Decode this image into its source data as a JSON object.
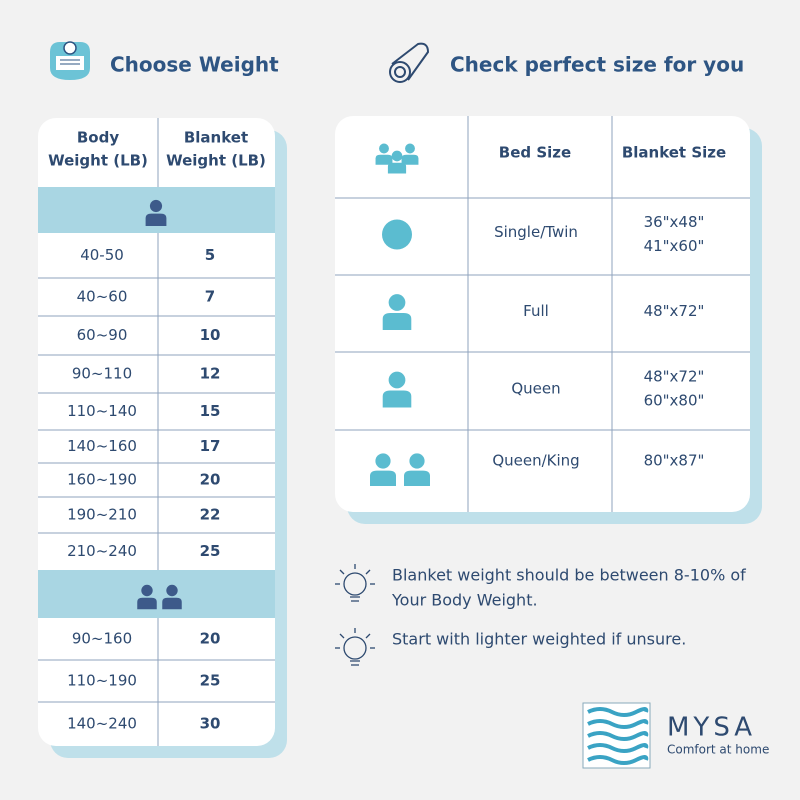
{
  "headings": {
    "weight": "Choose Weight",
    "size": "Check perfect size for you"
  },
  "weight_table": {
    "headers": [
      [
        "Body",
        "Weight (LB)"
      ],
      [
        "Blanket",
        "Weight (LB)"
      ]
    ],
    "single": [
      [
        "40-50",
        5
      ],
      [
        "40~60",
        7
      ],
      [
        "60~90",
        10
      ],
      [
        "90~110",
        12
      ],
      [
        "110~140",
        15
      ],
      [
        "140~160",
        17
      ],
      [
        "160~190",
        20
      ],
      [
        "190~210",
        22
      ],
      [
        "210~240",
        25
      ]
    ],
    "couple": [
      [
        "90~160",
        20
      ],
      [
        "110~190",
        25
      ],
      [
        "140~240",
        30
      ]
    ]
  },
  "size_table": {
    "headers": [
      "Bed Size",
      "Blanket Size"
    ],
    "rows": [
      {
        "bed": "Single/Twin",
        "sizes": [
          "36\"x48\"",
          "41\"x60\""
        ]
      },
      {
        "bed": "Full",
        "sizes": [
          "48\"x72\""
        ]
      },
      {
        "bed": "Queen",
        "sizes": [
          "48\"x72\"",
          "60\"x80\""
        ]
      },
      {
        "bed": "Queen/King",
        "sizes": [
          "80\"x87\""
        ]
      }
    ]
  },
  "tips": [
    [
      "Blanket weight should be between 8-10% of",
      "Your Body Weight."
    ],
    [
      "Start with lighter weighted if unsure."
    ]
  ],
  "brand": {
    "name": "MYSA",
    "tagline": "Comfort at home"
  }
}
